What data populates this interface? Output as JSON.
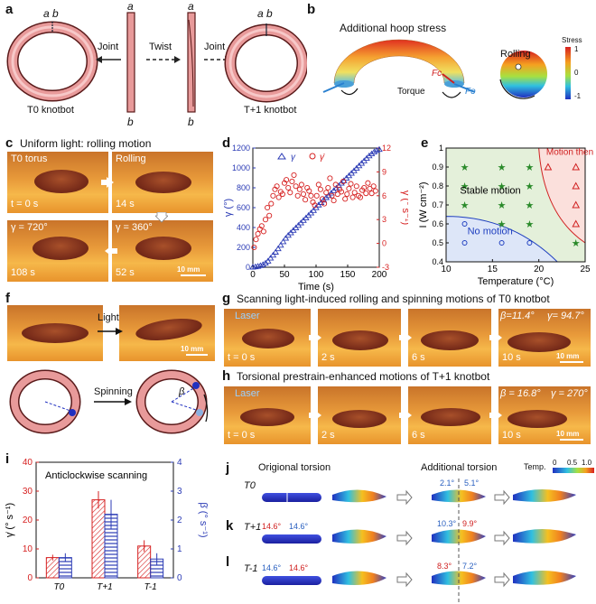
{
  "panels": {
    "a": {
      "label": "a",
      "left_caption": "T0 knotbot",
      "right_caption": "T+1 knotbot",
      "joint": "Joint",
      "twist": "Twist",
      "joint2": "Joint",
      "end_a": "a",
      "end_b": "b",
      "ab": "a b"
    },
    "b": {
      "label": "b",
      "title": "Additional hoop stress",
      "fc": "Fc",
      "fe": "Fe",
      "torque": "Torque",
      "rolling": "Rolling",
      "stress_title": "Stress",
      "stress_ticks": [
        "1",
        "0",
        "-1"
      ]
    },
    "c": {
      "label": "c",
      "title": "Uniform light: rolling motion",
      "frames": [
        {
          "top": "T0 torus",
          "bottom": "t = 0 s"
        },
        {
          "top": "Rolling",
          "bottom": "14 s"
        },
        {
          "top": "γ = 720°",
          "bottom": "108 s"
        },
        {
          "top": "γ = 360°",
          "bottom": "52 s",
          "scale": "10 mm"
        }
      ]
    },
    "d": {
      "label": "d",
      "xlabel": "Time (s)",
      "ylabel": "γ (°)",
      "y2label": "γ̇ (° s⁻¹)",
      "legend1": "γ",
      "legend2": "γ̇"
    },
    "e": {
      "label": "e",
      "xlabel": "Temperature (°C)",
      "ylabel": "I (W cm⁻²)",
      "region1": "Stable motion",
      "region2": "No motion",
      "region3": "Motion then halt"
    },
    "f": {
      "label": "f",
      "light": "Light",
      "scale": "10 mm",
      "spinning": "Spinning",
      "beta": "β"
    },
    "g": {
      "label": "g",
      "title": "Scanning light-induced rolling and spinning motions of T0 knotbot",
      "laser": "Laser",
      "frames": [
        "t = 0 s",
        "2 s",
        "6 s",
        "10 s"
      ],
      "beta": "β=11.4°",
      "gamma": "γ= 94.7°",
      "scale": "10 mm"
    },
    "h": {
      "label": "h",
      "title": "Torsional prestrain-enhanced motions of T+1 knotbot",
      "laser": "Laser",
      "frames": [
        "t = 0 s",
        "2 s",
        "6 s",
        "10 s"
      ],
      "beta": "β = 16.8°",
      "gamma": "γ = 270°",
      "scale": "10 mm"
    },
    "i": {
      "label": "i",
      "title": "Anticlockwise scanning",
      "ylabel": "γ̇ (° s⁻¹)",
      "y2label": "β̇ (° s⁻¹)",
      "cats": [
        "T0",
        "T+1",
        "T-1"
      ]
    },
    "j": {
      "label": "j",
      "orig": "Origional torsion",
      "add": "Additional torsion",
      "temp": "Temp.",
      "temp_ticks": [
        "0",
        "0.5",
        "1.0"
      ],
      "row": "T0",
      "v1": "2.1°",
      "v2": "5.1°",
      "zero": "0",
      "one": "0"
    },
    "k": {
      "label": "k",
      "row": "T+1",
      "o1": "14.6°",
      "o2": "14.6°",
      "v1": "10.3°",
      "v2": "9.9°"
    },
    "l": {
      "label": "l",
      "row": "T-1",
      "o1": "14.6°",
      "o2": "14.6°",
      "v1": "8.3°",
      "v2": "7.2°"
    }
  },
  "chart_data": [
    {
      "type": "scatter",
      "panel": "d",
      "xlim": [
        0,
        200
      ],
      "ylim": [
        0,
        1200
      ],
      "y2lim": [
        -3,
        12
      ],
      "xticks": [
        0,
        50,
        100,
        150,
        200
      ],
      "yticks": [
        0,
        200,
        400,
        600,
        800,
        1000,
        1200
      ],
      "y2ticks": [
        -3,
        0,
        3,
        6,
        9,
        12
      ],
      "series": [
        {
          "name": "γ",
          "axis": "left",
          "color": "#2b3bb5",
          "x": [
            0,
            4,
            8,
            12,
            16,
            20,
            24,
            28,
            32,
            36,
            40,
            44,
            48,
            52,
            56,
            60,
            64,
            68,
            72,
            76,
            80,
            84,
            88,
            92,
            96,
            100,
            104,
            108,
            112,
            116,
            120,
            124,
            128,
            132,
            136,
            140,
            144,
            148,
            152,
            156,
            160,
            164,
            168,
            172,
            176,
            180,
            184,
            188,
            192,
            196,
            200
          ],
          "y": [
            0,
            3,
            8,
            15,
            25,
            40,
            60,
            90,
            120,
            150,
            185,
            220,
            255,
            290,
            320,
            345,
            370,
            395,
            420,
            445,
            470,
            495,
            520,
            545,
            570,
            598,
            625,
            650,
            675,
            700,
            720,
            745,
            770,
            795,
            820,
            845,
            870,
            895,
            920,
            945,
            970,
            995,
            1020,
            1045,
            1070,
            1095,
            1120,
            1140,
            1160,
            1175,
            1185
          ]
        },
        {
          "name": "γ̇",
          "axis": "right",
          "color": "#d62020",
          "x": [
            2,
            5,
            8,
            11,
            14,
            17,
            20,
            23,
            26,
            29,
            32,
            35,
            38,
            41,
            44,
            47,
            50,
            53,
            56,
            59,
            62,
            65,
            68,
            71,
            74,
            77,
            80,
            83,
            86,
            89,
            92,
            95,
            98,
            101,
            104,
            107,
            110,
            113,
            116,
            119,
            122,
            125,
            128,
            131,
            134,
            137,
            140,
            143,
            146,
            149,
            152,
            155,
            158,
            161,
            164,
            167,
            170,
            173,
            176,
            179,
            182,
            185,
            188,
            191,
            194
          ],
          "y": [
            -0.5,
            0.5,
            1.2,
            1.8,
            2.2,
            1.5,
            3.0,
            4.5,
            3.5,
            5.0,
            6.0,
            6.8,
            7.2,
            5.8,
            6.5,
            6.2,
            7.6,
            8.0,
            7.0,
            6.4,
            7.8,
            8.6,
            7.2,
            6.0,
            6.8,
            7.4,
            6.2,
            5.5,
            7.0,
            6.6,
            6.0,
            5.2,
            4.8,
            6.0,
            7.4,
            6.8,
            5.6,
            5.0,
            6.4,
            7.0,
            8.2,
            6.0,
            5.4,
            7.4,
            6.2,
            6.8,
            6.5,
            7.8,
            5.6,
            6.2,
            6.9,
            7.5,
            5.8,
            6.4,
            7.2,
            6.0,
            5.8,
            6.7,
            7.0,
            6.3,
            7.6,
            6.9,
            6.3,
            7.2,
            6.6
          ]
        }
      ]
    },
    {
      "type": "scatter",
      "panel": "e",
      "xlim": [
        10,
        25
      ],
      "ylim": [
        0.4,
        1.0
      ],
      "xticks": [
        10,
        15,
        20,
        25
      ],
      "yticks": [
        0.4,
        0.5,
        0.6,
        0.7,
        0.8,
        0.9,
        1.0
      ],
      "series": [
        {
          "name": "No motion",
          "marker": "circle",
          "color": "#2040c0",
          "x": [
            12,
            12,
            16,
            19
          ],
          "y": [
            0.5,
            0.6,
            0.5,
            0.5
          ]
        },
        {
          "name": "Stable motion",
          "marker": "star",
          "color": "#2a8a2a",
          "x": [
            12,
            12,
            12,
            16,
            16,
            16,
            16,
            19,
            19,
            19,
            19,
            24
          ],
          "y": [
            0.7,
            0.8,
            0.9,
            0.6,
            0.7,
            0.8,
            0.9,
            0.6,
            0.7,
            0.8,
            0.9,
            0.5
          ]
        },
        {
          "name": "Motion then halt",
          "marker": "triangle",
          "color": "#d02020",
          "x": [
            21,
            24,
            24,
            24,
            24
          ],
          "y": [
            0.9,
            0.9,
            0.8,
            0.7,
            0.6
          ]
        }
      ]
    },
    {
      "type": "bar",
      "panel": "i",
      "categories": [
        "T0",
        "T+1",
        "T-1"
      ],
      "ylim": [
        0,
        40
      ],
      "y2lim": [
        0,
        4
      ],
      "yticks": [
        0,
        10,
        20,
        30,
        40
      ],
      "y2ticks": [
        0,
        1,
        2,
        3,
        4
      ],
      "series": [
        {
          "name": "γ̇",
          "axis": "left",
          "color": "#d62020",
          "values": [
            7,
            27,
            11
          ],
          "err": [
            1,
            3,
            2
          ]
        },
        {
          "name": "β̇",
          "axis": "right",
          "color": "#2b3bb5",
          "values": [
            0.7,
            2.2,
            0.65
          ],
          "err": [
            0.15,
            0.5,
            0.2
          ]
        }
      ]
    }
  ]
}
